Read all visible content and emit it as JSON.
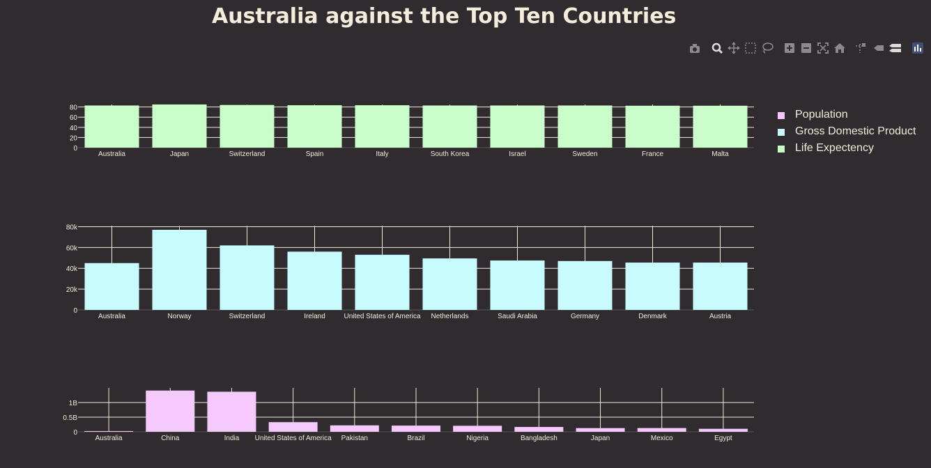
{
  "title": "Australia against the Top Ten Countries",
  "colors": {
    "background": "#2f2b2f",
    "text": "#f3eddb",
    "grid": "#f3eddb",
    "population": "#f5c9fb",
    "gdp": "#c8fbfd",
    "life": "#c9fdc9",
    "modebar_icon": "#8c8890",
    "modebar_active": "#dcdcdc"
  },
  "modebar": [
    {
      "name": "download-plot-icon",
      "icon": "camera"
    },
    {
      "name": "zoom-icon",
      "icon": "zoom"
    },
    {
      "name": "pan-icon",
      "icon": "pan"
    },
    {
      "name": "box-select-icon",
      "icon": "box-select"
    },
    {
      "name": "lasso-select-icon",
      "icon": "lasso"
    },
    {
      "name": "zoom-in-icon",
      "icon": "plus"
    },
    {
      "name": "zoom-out-icon",
      "icon": "minus"
    },
    {
      "name": "autoscale-icon",
      "icon": "autoscale"
    },
    {
      "name": "reset-axes-icon",
      "icon": "home"
    },
    {
      "name": "spike-lines-icon",
      "icon": "spikes"
    },
    {
      "name": "hover-closest-icon",
      "icon": "hover-closest"
    },
    {
      "name": "hover-compare-icon",
      "icon": "hover-compare"
    },
    {
      "name": "plotly-logo-icon",
      "icon": "plotly-logo"
    }
  ],
  "legend": [
    {
      "label": "Population",
      "color": "#f5c9fb"
    },
    {
      "label": "Gross Domestic Product",
      "color": "#c8fbfd"
    },
    {
      "label": "Life Expectency",
      "color": "#c9fdc9"
    }
  ],
  "chart_data": [
    {
      "type": "bar",
      "series": [
        {
          "name": "Life Expectency",
          "values": [
            83,
            85,
            84,
            83.5,
            83.5,
            83,
            83,
            83,
            82.5,
            82.5
          ]
        }
      ],
      "categories": [
        "Australia",
        "Japan",
        "Switzerland",
        "Spain",
        "Italy",
        "South Korea",
        "Israel",
        "Sweden",
        "France",
        "Malta"
      ],
      "ylim": [
        0,
        85
      ],
      "yticks": [
        0,
        20,
        40,
        60,
        80
      ],
      "ytick_labels": [
        "0",
        "20",
        "40",
        "60",
        "80"
      ],
      "grid": true
    },
    {
      "type": "bar",
      "series": [
        {
          "name": "Gross Domestic Product",
          "values": [
            45000,
            77000,
            62000,
            56000,
            53000,
            49500,
            47500,
            47000,
            45500,
            45500
          ]
        }
      ],
      "categories": [
        "Australia",
        "Norway",
        "Switzerland",
        "Ireland",
        "United States of America",
        "Netherlands",
        "Saudi Arabia",
        "Germany",
        "Denmark",
        "Austria"
      ],
      "ylim": [
        0,
        81000
      ],
      "yticks": [
        0,
        20000,
        40000,
        60000,
        80000
      ],
      "ytick_labels": [
        "0",
        "20k",
        "40k",
        "60k",
        "80k"
      ],
      "grid": true
    },
    {
      "type": "bar",
      "series": [
        {
          "name": "Population",
          "values": [
            25000000,
            1410000000,
            1370000000,
            330000000,
            220000000,
            212000000,
            206000000,
            165000000,
            126000000,
            128000000,
            102000000
          ]
        }
      ],
      "categories": [
        "Australia",
        "China",
        "India",
        "United States of America",
        "Pakistan",
        "Brazil",
        "Nigeria",
        "Bangladesh",
        "Japan",
        "Mexico",
        "Egypt"
      ],
      "ylim": [
        0,
        1500000000
      ],
      "yticks": [
        0,
        500000000,
        1000000000
      ],
      "ytick_labels": [
        "0",
        "0.5B",
        "1B"
      ],
      "grid": true
    }
  ]
}
